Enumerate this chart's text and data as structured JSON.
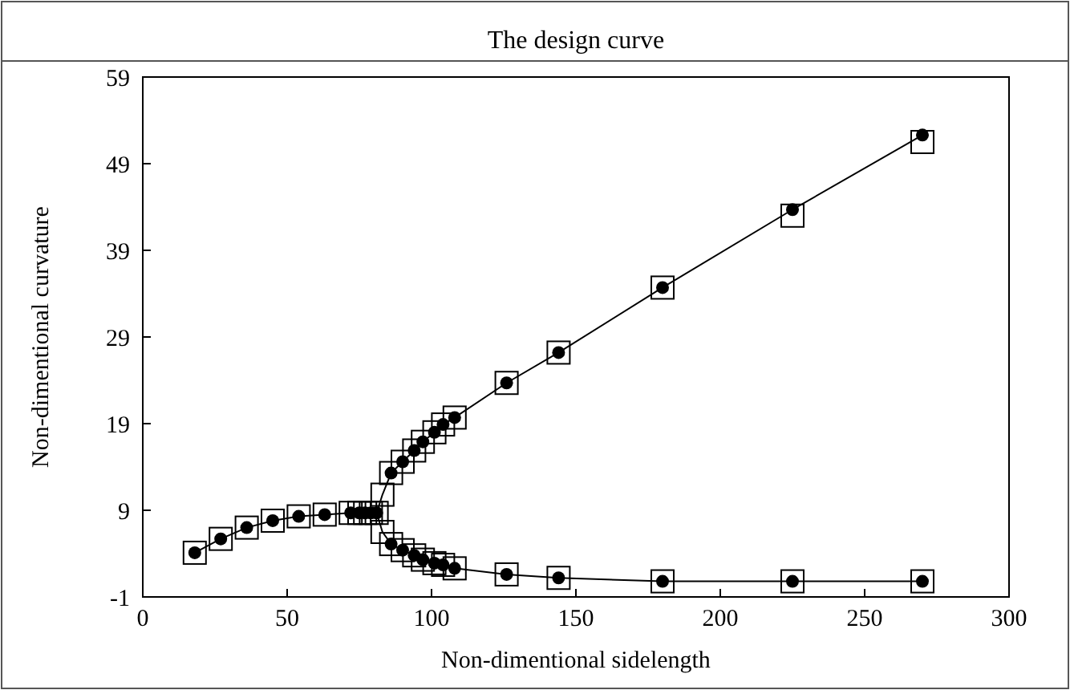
{
  "chart_data": {
    "type": "line",
    "title": "The design curve",
    "xlabel": "Non-dimentional sidelength",
    "ylabel": "Non-dimentional curvature",
    "xlim": [
      0,
      300
    ],
    "xticks": [
      0,
      50,
      100,
      150,
      200,
      250,
      300
    ],
    "ylim": [
      -1,
      59
    ],
    "yticks": [
      -1,
      9,
      19,
      29,
      39,
      49,
      59
    ],
    "grid": false,
    "series": [
      {
        "color": "#000000",
        "marker": "none",
        "x": [
          18,
          27,
          36,
          45,
          54,
          63,
          72,
          75,
          77,
          79,
          81,
          83,
          86,
          90,
          94,
          97,
          101,
          104,
          108,
          126,
          144,
          180,
          225,
          270
        ],
        "values": [
          4.1,
          5.7,
          7.0,
          7.8,
          8.3,
          8.5,
          8.7,
          8.7,
          8.7,
          8.7,
          8.7,
          10.8,
          13.3,
          14.6,
          15.9,
          16.9,
          18.0,
          18.9,
          19.7,
          23.7,
          27.2,
          34.7,
          43.7,
          52.3
        ]
      },
      {
        "color": "#000000",
        "marker": "none",
        "x": [
          81,
          83,
          86,
          90,
          94,
          97,
          101,
          104,
          108,
          126,
          144,
          180,
          225,
          270
        ],
        "values": [
          8.7,
          6.5,
          5.1,
          4.4,
          3.8,
          3.3,
          2.9,
          2.7,
          2.3,
          1.6,
          1.2,
          0.8,
          0.8,
          0.8
        ]
      },
      {
        "type": "scatter",
        "color": "#000000",
        "marker": "square",
        "x": [
          18,
          27,
          36,
          45,
          54,
          63,
          72,
          75,
          77,
          79,
          81,
          83,
          86,
          90,
          94,
          97,
          101,
          104,
          108,
          126,
          144,
          180,
          225,
          270,
          83,
          86,
          90,
          94,
          97,
          101,
          104,
          108,
          126,
          144,
          180,
          225,
          270
        ],
        "values": [
          4.1,
          5.7,
          7.0,
          7.8,
          8.3,
          8.5,
          8.7,
          8.7,
          8.7,
          8.7,
          8.7,
          10.8,
          13.3,
          14.6,
          15.9,
          16.9,
          18.0,
          18.9,
          19.7,
          23.7,
          27.2,
          34.7,
          43.0,
          51.5,
          6.5,
          5.1,
          4.4,
          3.8,
          3.3,
          2.9,
          2.7,
          2.3,
          1.6,
          1.2,
          0.8,
          0.8,
          0.8
        ]
      },
      {
        "type": "scatter",
        "color": "#000000",
        "marker": "circle",
        "x": [
          18,
          27,
          36,
          45,
          54,
          63,
          72,
          75,
          77,
          79,
          81,
          86,
          90,
          94,
          97,
          101,
          104,
          108,
          126,
          144,
          180,
          225,
          270,
          86,
          90,
          94,
          97,
          101,
          104,
          108,
          126,
          144,
          180,
          225,
          270
        ],
        "values": [
          4.1,
          5.7,
          7.0,
          7.8,
          8.3,
          8.5,
          8.7,
          8.7,
          8.7,
          8.7,
          8.7,
          13.3,
          14.6,
          15.9,
          16.9,
          18.0,
          18.9,
          19.7,
          23.7,
          27.2,
          34.7,
          43.7,
          52.3,
          5.1,
          4.4,
          3.8,
          3.3,
          2.9,
          2.7,
          2.3,
          1.6,
          1.2,
          0.8,
          0.8,
          0.8
        ]
      }
    ]
  }
}
